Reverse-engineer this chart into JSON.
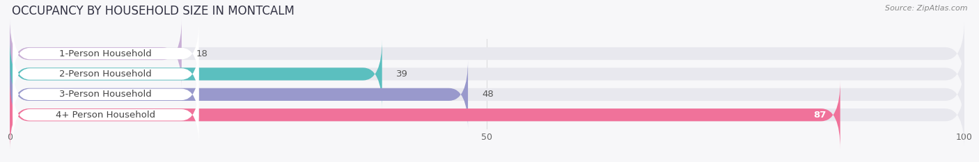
{
  "title": "OCCUPANCY BY HOUSEHOLD SIZE IN MONTCALM",
  "source": "Source: ZipAtlas.com",
  "categories": [
    "1-Person Household",
    "2-Person Household",
    "3-Person Household",
    "4+ Person Household"
  ],
  "values": [
    18,
    39,
    48,
    87
  ],
  "bar_colors": [
    "#c9afd6",
    "#5bbfbf",
    "#9999cc",
    "#f0729a"
  ],
  "label_colors": [
    "#333333",
    "#333333",
    "#333333",
    "#ffffff"
  ],
  "xlim": [
    0,
    100
  ],
  "xticks": [
    0,
    50,
    100
  ],
  "bar_height": 0.62,
  "background_color": "#f7f7f9",
  "bar_bg_color": "#e8e8ee",
  "title_fontsize": 12,
  "label_fontsize": 9.5,
  "value_fontsize": 9.5
}
